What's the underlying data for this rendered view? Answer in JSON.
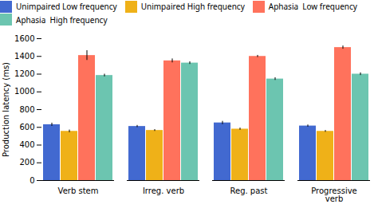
{
  "chart_data": {
    "type": "bar",
    "categories": [
      "Verb stem",
      "Irreg. verb",
      "Reg. past",
      "Progressive\nverb"
    ],
    "series": [
      {
        "name": "Unimpaired Low frequency",
        "values": [
          630,
          610,
          650,
          615
        ],
        "errors": [
          18,
          12,
          18,
          12
        ]
      },
      {
        "name": "Unimpaired High frequency",
        "values": [
          555,
          565,
          580,
          555
        ],
        "errors": [
          15,
          10,
          12,
          10
        ]
      },
      {
        "name": "Aphasia  Low frequency",
        "values": [
          1410,
          1350,
          1400,
          1500
        ],
        "errors": [
          55,
          22,
          12,
          18
        ]
      },
      {
        "name": "Aphasia  High frequency",
        "values": [
          1185,
          1325,
          1145,
          1200
        ],
        "errors": [
          15,
          15,
          15,
          15
        ]
      }
    ],
    "ylabel": "Production latency (ms)",
    "ylim": [
      0,
      1600
    ],
    "yticks": [
      0,
      200,
      400,
      600,
      800,
      1000,
      1200,
      1400,
      1600
    ],
    "grid": false,
    "legend": "top"
  }
}
